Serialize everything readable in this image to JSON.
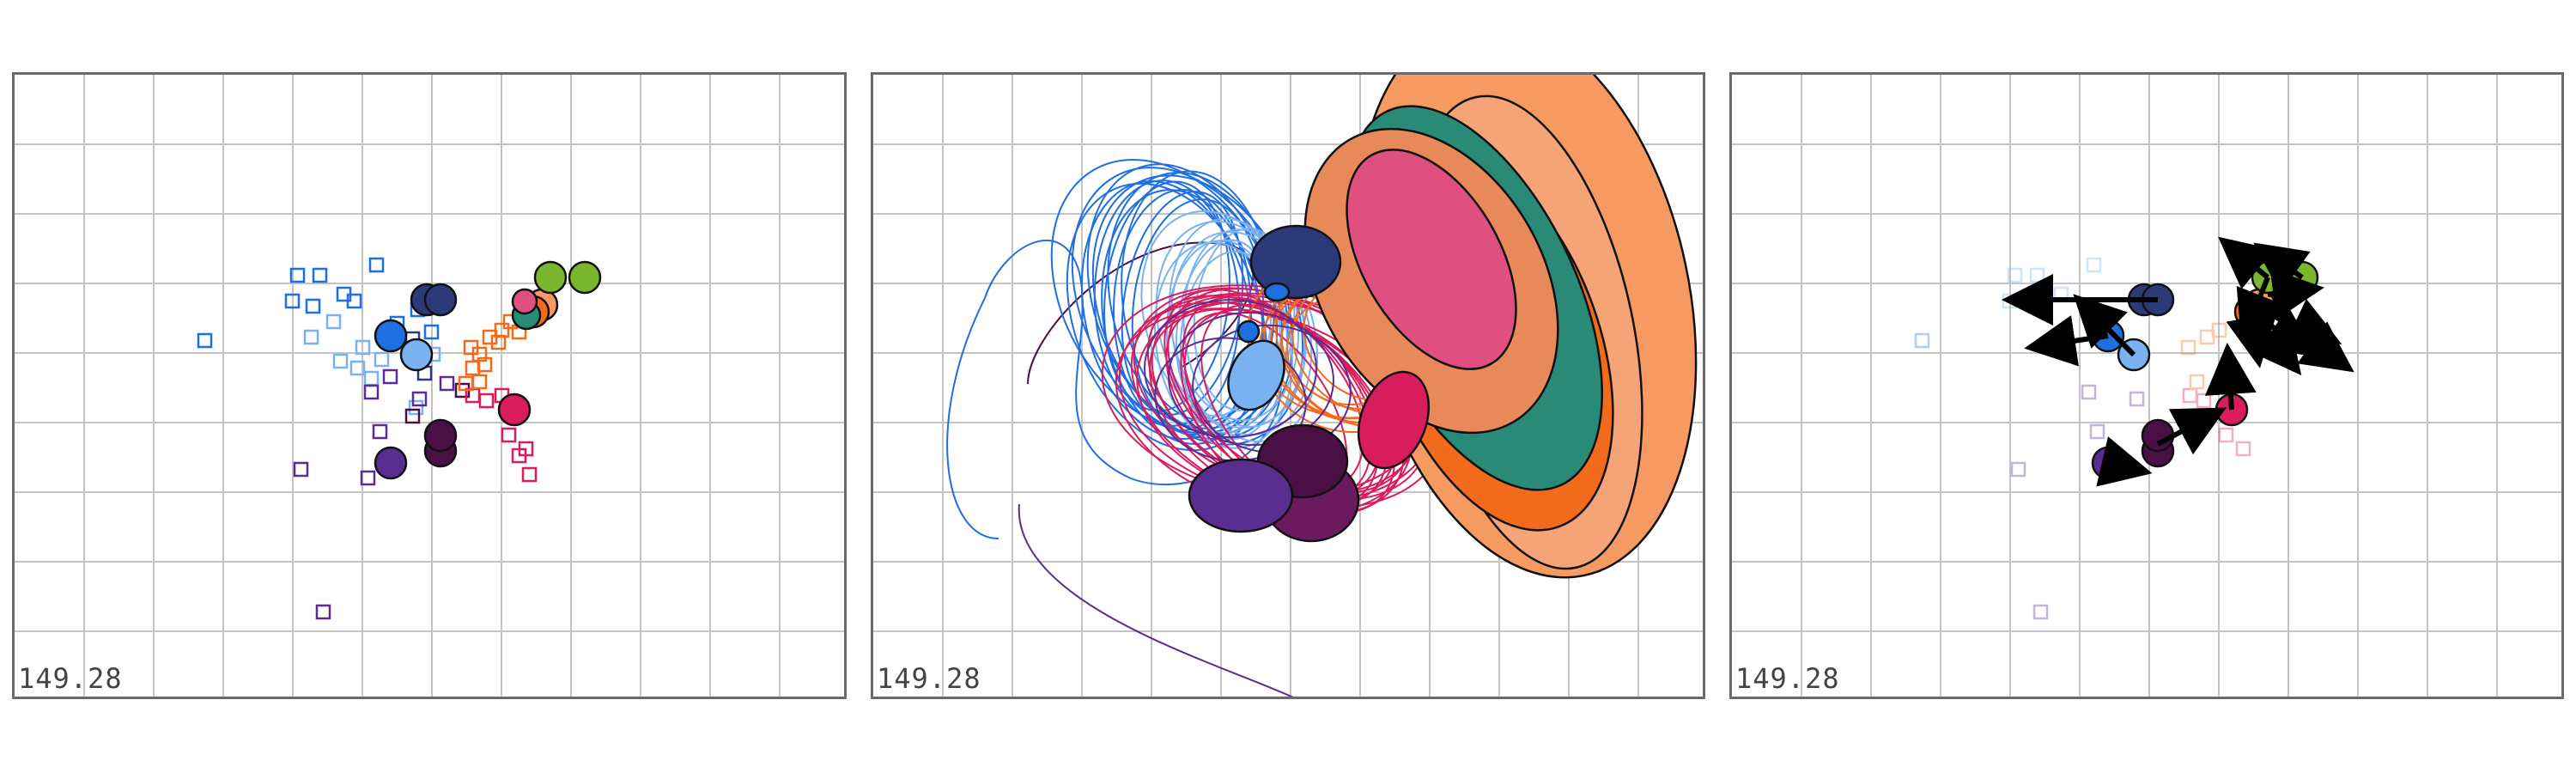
{
  "panels": [
    {
      "id": "scatter",
      "readout": "149.28"
    },
    {
      "id": "ellipses",
      "readout": "149.28"
    },
    {
      "id": "vectors",
      "readout": "149.28"
    }
  ],
  "colors": {
    "grid": "#c4c4c4",
    "frame": "#6a6a6a",
    "blue": "#1f6fe0",
    "lightblue": "#7ab1f0",
    "navy": "#2c3a7a",
    "purple": "#5a2d91",
    "darkpurple": "#4a0f45",
    "crimson": "#d81c5c",
    "orange": "#f26a1b",
    "peach": "#f79a62",
    "teal": "#2a8a78",
    "green": "#7ab72e",
    "pink": "#df4f7f"
  },
  "icons": [
    "circle-marker",
    "square-marker",
    "arrow",
    "ellipse",
    "orbit-curve"
  ]
}
